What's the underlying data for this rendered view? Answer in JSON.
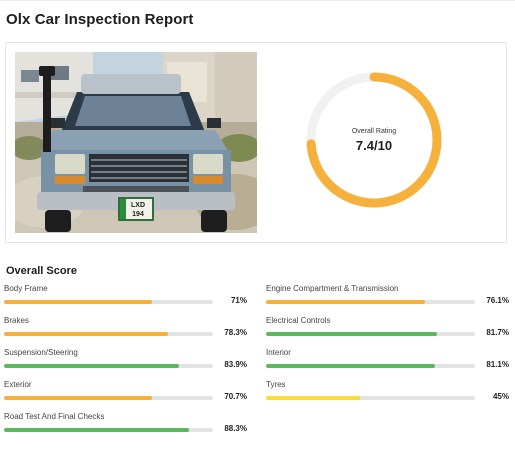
{
  "title": "Olx Car Inspection Report",
  "rating": {
    "label": "Overall Rating",
    "value": "7.4/10",
    "score": 7.4,
    "max": 10,
    "color": "#f6b03c",
    "track_color": "#f1f1f1"
  },
  "photo": {
    "plate_text_1": "LXD",
    "plate_text_2": "194",
    "grille_badge": "TOYOTA"
  },
  "overall_score": {
    "heading": "Overall Score",
    "colors": {
      "orange": "#f6b03c",
      "green": "#5cb85c",
      "yellow": "#f8dc3c",
      "track": "#e3e3e3"
    },
    "left": [
      {
        "label": "Body Frame",
        "percent": "71%",
        "value": 71,
        "color": "orange"
      },
      {
        "label": "Brakes",
        "percent": "78.3%",
        "value": 78.3,
        "color": "orange"
      },
      {
        "label": "Suspension/Steering",
        "percent": "83.9%",
        "value": 83.9,
        "color": "green"
      },
      {
        "label": "Exterior",
        "percent": "70.7%",
        "value": 70.7,
        "color": "orange"
      },
      {
        "label": "Road Test And Final Checks",
        "percent": "88.3%",
        "value": 88.3,
        "color": "green"
      }
    ],
    "right": [
      {
        "label": "Engine Compartment & Transmission",
        "percent": "76.1%",
        "value": 76.1,
        "color": "orange"
      },
      {
        "label": "Electrical Controls",
        "percent": "81.7%",
        "value": 81.7,
        "color": "green"
      },
      {
        "label": "Interior",
        "percent": "81.1%",
        "value": 81.1,
        "color": "green"
      },
      {
        "label": "Tyres",
        "percent": "45%",
        "value": 45,
        "color": "yellow"
      }
    ]
  }
}
